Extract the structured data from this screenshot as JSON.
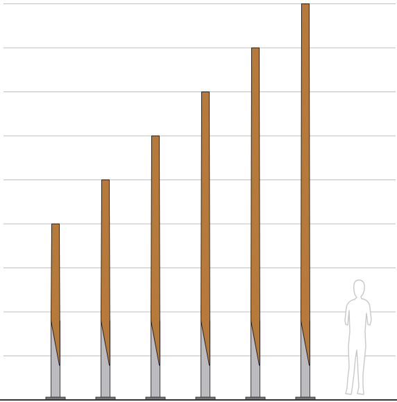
{
  "diagram": {
    "type": "pole-height-comparison",
    "grid_levels": 9,
    "poles": [
      {
        "id": "pole-1",
        "height_levels": 4
      },
      {
        "id": "pole-2",
        "height_levels": 5
      },
      {
        "id": "pole-3",
        "height_levels": 6
      },
      {
        "id": "pole-4",
        "height_levels": 7
      },
      {
        "id": "pole-5",
        "height_levels": 8
      },
      {
        "id": "pole-6",
        "height_levels": 9
      }
    ],
    "scale_reference": "human-silhouette",
    "colors": {
      "background": "#ffffff",
      "grid": "#bdbdbd",
      "ground": "#333333",
      "wood": "#b87a3b",
      "steel": "#bcbcc0",
      "outline": "#1a1a1a",
      "base_plate": "#7a7a7a",
      "silhouette_stroke": "#c8c8c8"
    }
  }
}
